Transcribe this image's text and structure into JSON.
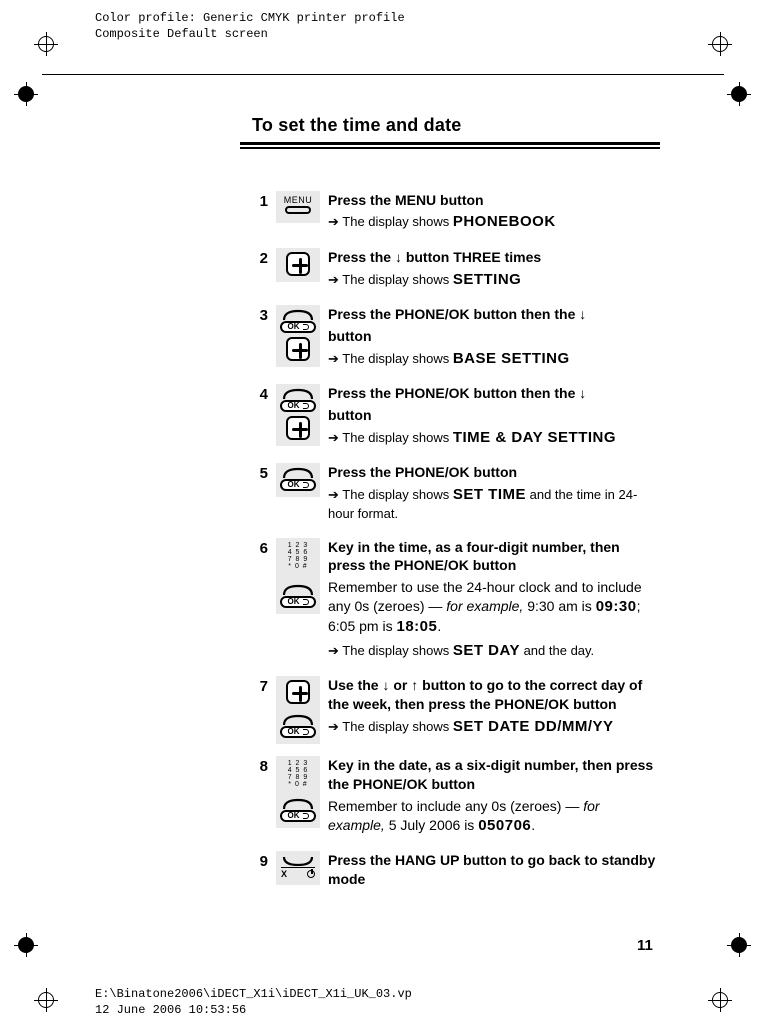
{
  "meta": {
    "color_profile": "Color profile: Generic CMYK printer profile",
    "composite": "Composite  Default screen",
    "footer_path": "E:\\Binatone2006\\iDECT_X1i\\iDECT_X1i_UK_03.vp",
    "footer_date": "12 June 2006 10:53:56"
  },
  "section_title": "To set the time and date",
  "page_number": "11",
  "steps": [
    {
      "num": "1",
      "instruction_html": "Press the <b>MENU</b> button",
      "result_prefix": "➔  The display shows ",
      "result_lcd": "PHONEBOOK"
    },
    {
      "num": "2",
      "instruction_html": "Press the <b>↓</b> button THREE times",
      "result_prefix": "➔ The display shows ",
      "result_lcd": "SETTING"
    },
    {
      "num": "3",
      "instruction_pre": "Press the <b>PHONE/OK</b> button then the <b>↓</b>",
      "instruction_post": "button",
      "result_prefix": "➔ The display shows ",
      "result_lcd": "BASE SETTING"
    },
    {
      "num": "4",
      "instruction_pre": "Press the <b>PHONE/OK</b> button then the <b>↓</b>",
      "instruction_post": "button",
      "result_prefix": "➔ The display shows ",
      "result_lcd": "TIME & DAY SETTING"
    },
    {
      "num": "5",
      "instruction_html": "Press the <b>PHONE/OK</b> button",
      "result_prefix": "➔ The display shows ",
      "result_lcd": "SET TIME",
      "result_suffix": " and the time in 24-hour format."
    },
    {
      "num": "6",
      "instruction_html": "Key in the time, as a four-digit number, then press the <b>PHONE/OK</b> button",
      "detail_pre": "Remember to use the 24-hour clock and to include any 0s (zeroes) — ",
      "detail_em1": "for example,",
      "detail_mid1": " 9:30 am is ",
      "detail_lcd1": "09:30",
      "detail_mid2": "; 6:05 pm is ",
      "detail_lcd2": "18:05",
      "detail_post": ".",
      "result_prefix": "➔ The display shows ",
      "result_lcd": "SET DAY",
      "result_suffix": " and the day."
    },
    {
      "num": "7",
      "instruction_html": "Use the <b>↓</b> or <b>↑</b> button to go to the correct day of the week, then press the <b>PHONE/OK</b> button",
      "result_prefix": "➔ The display shows ",
      "result_lcd": "SET  DATE  DD/MM/YY"
    },
    {
      "num": "8",
      "instruction_html": "Key in the date, as a six-digit number, then press the <b>PHONE/OK</b> button",
      "detail_pre": "Remember to include any 0s (zeroes) — ",
      "detail_em1": "for example,",
      "detail_mid1": " 5 July 2006 is ",
      "detail_lcd1": "050706",
      "detail_post": "."
    },
    {
      "num": "9",
      "instruction_html": "Press the <b>HANG UP</b> button to go back to standby mode"
    }
  ],
  "keypad_rows": [
    "1 2 3",
    "4 5 6",
    "7 8 9",
    "* 0 #"
  ],
  "ok_label": "OK",
  "menu_label": "MENU"
}
